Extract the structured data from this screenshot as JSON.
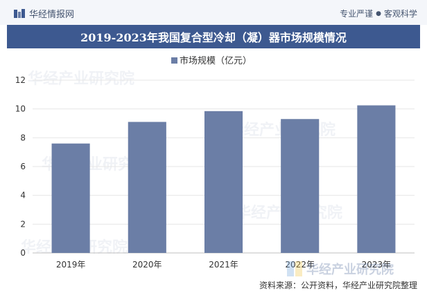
{
  "header": {
    "brand_name": "华经情报网",
    "slogan_left": "专业严谨",
    "slogan_right": "客观科学"
  },
  "watermark_text": "华经产业研究院",
  "source_text": "资料来源：公开资料，华经产业研究院整理",
  "colors": {
    "bar": "#6b7ea6",
    "title_bg": "#3d5990",
    "grid": "#e6e6e6",
    "axis_text": "#333333"
  },
  "chart_data": {
    "type": "bar",
    "title": "2019-2023年我国复合型冷却（凝）器市场规模情况",
    "categories": [
      "2019年",
      "2020年",
      "2021年",
      "2022年",
      "2023年"
    ],
    "series": [
      {
        "name": "市场规模（亿元）",
        "values": [
          7.6,
          9.1,
          9.85,
          9.3,
          10.25
        ]
      }
    ],
    "ylim": [
      0,
      12
    ],
    "yticks": [
      0,
      2,
      4,
      6,
      8,
      10,
      12
    ],
    "legend": "top-center",
    "grid": true
  }
}
